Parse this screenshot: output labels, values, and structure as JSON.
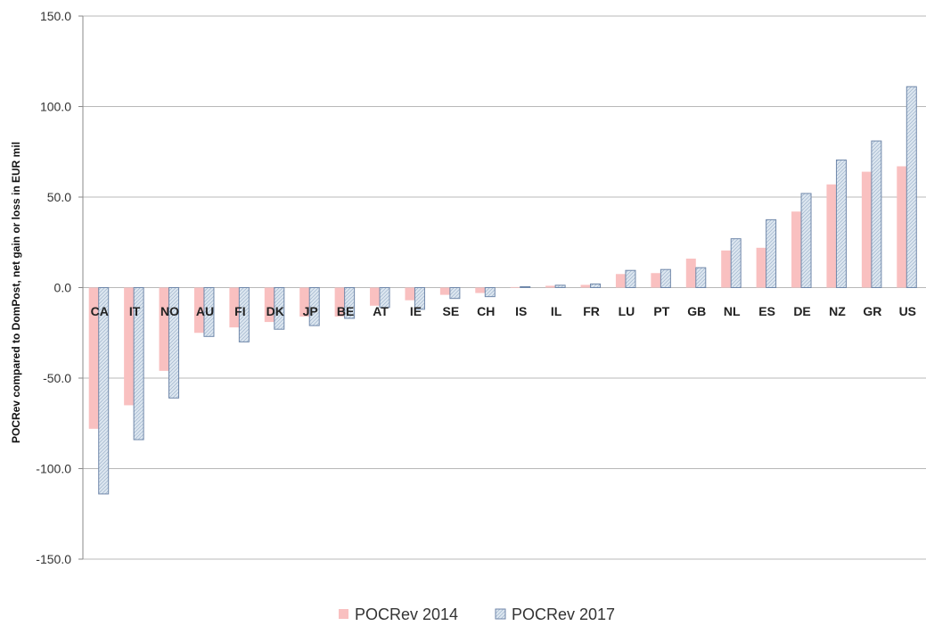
{
  "chart_data": {
    "type": "bar",
    "title": "",
    "xlabel": "",
    "ylabel": "POCRev compared to DomPost, net gain or loss in  EUR mil",
    "ylim": [
      -150,
      150
    ],
    "yticks": [
      150,
      100,
      50,
      0,
      -50,
      -100,
      -150
    ],
    "ytick_labels": [
      "150.0",
      "100.0",
      "50.0",
      "0.0",
      "-50.0",
      "-100.0",
      "-150.0"
    ],
    "grid": true,
    "legend_position": "bottom",
    "categories": [
      "CA",
      "IT",
      "NO",
      "AU",
      "FI",
      "DK",
      "JP",
      "BE",
      "AT",
      "IE",
      "SE",
      "CH",
      "IS",
      "IL",
      "FR",
      "LU",
      "PT",
      "GB",
      "NL",
      "ES",
      "DE",
      "NZ",
      "GR",
      "US"
    ],
    "series": [
      {
        "name": "POCRev 2014",
        "color": "#f9c0c0",
        "pattern": "solid",
        "values": [
          -78,
          -65,
          -46,
          -25,
          -22,
          -19,
          -16,
          -16,
          -10,
          -7,
          -4,
          -3,
          0.3,
          1,
          1.5,
          7.5,
          8,
          16,
          20.5,
          22,
          42,
          57,
          64,
          67
        ]
      },
      {
        "name": "POCRev 2017",
        "color": "#dbe6ef",
        "pattern": "hatched",
        "values": [
          -114,
          -84,
          -61,
          -27,
          -30,
          -23,
          -21,
          -17,
          -11,
          -12,
          -6,
          -5,
          0.5,
          1.3,
          2,
          9.5,
          10,
          11,
          27,
          37.5,
          52,
          70.5,
          81,
          111
        ]
      }
    ]
  }
}
